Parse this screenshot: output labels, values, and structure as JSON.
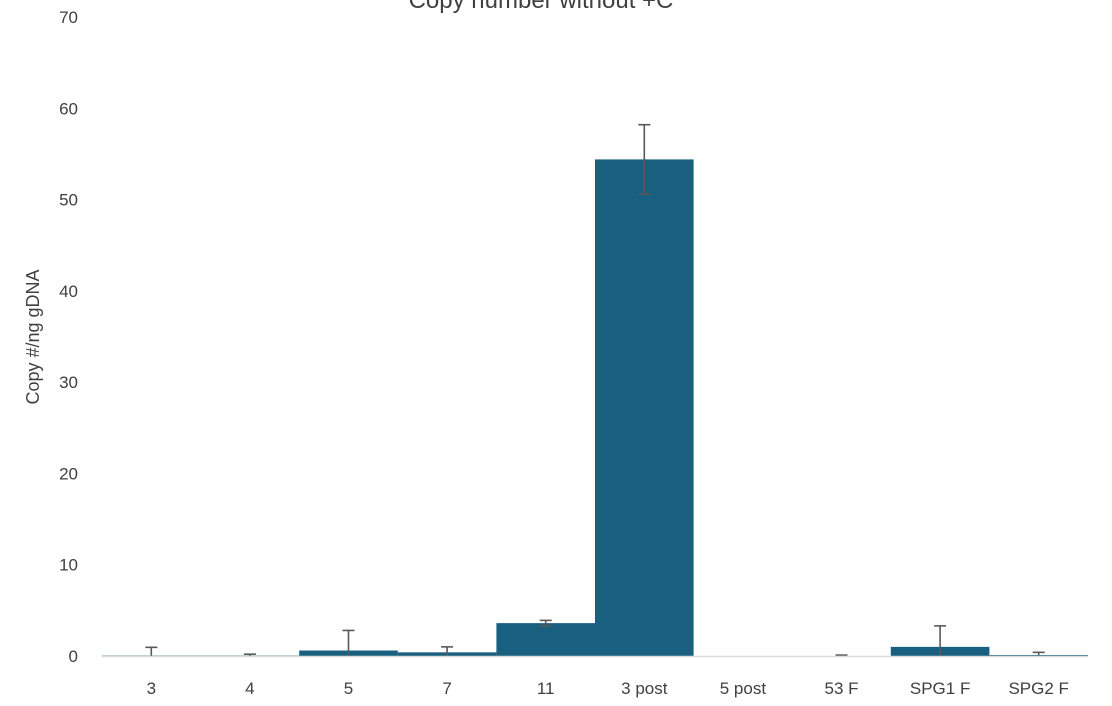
{
  "chart_data": {
    "type": "bar",
    "title": "Copy number without +C",
    "xlabel": "",
    "ylabel": "Copy #/ng gDNA",
    "ylim": [
      0,
      70
    ],
    "yticks": [
      0,
      10,
      20,
      30,
      40,
      50,
      60,
      70
    ],
    "grid": false,
    "legend": "none",
    "categories": [
      "3",
      "4",
      "5",
      "7",
      "11",
      "3 post",
      "5 post",
      "53 F",
      "SPG1 F",
      "SPG2 F"
    ],
    "values": [
      0.05,
      0.05,
      0.6,
      0.4,
      3.6,
      54.4,
      0.0,
      0.0,
      1.0,
      0.1
    ],
    "errors": [
      0.9,
      0.15,
      2.2,
      0.6,
      0.3,
      3.8,
      0.0,
      0.1,
      2.3,
      0.3
    ],
    "colors": {
      "bar": "#185F80",
      "error": "#595959",
      "axis": "#d9d9d9",
      "text": "#404040"
    }
  }
}
